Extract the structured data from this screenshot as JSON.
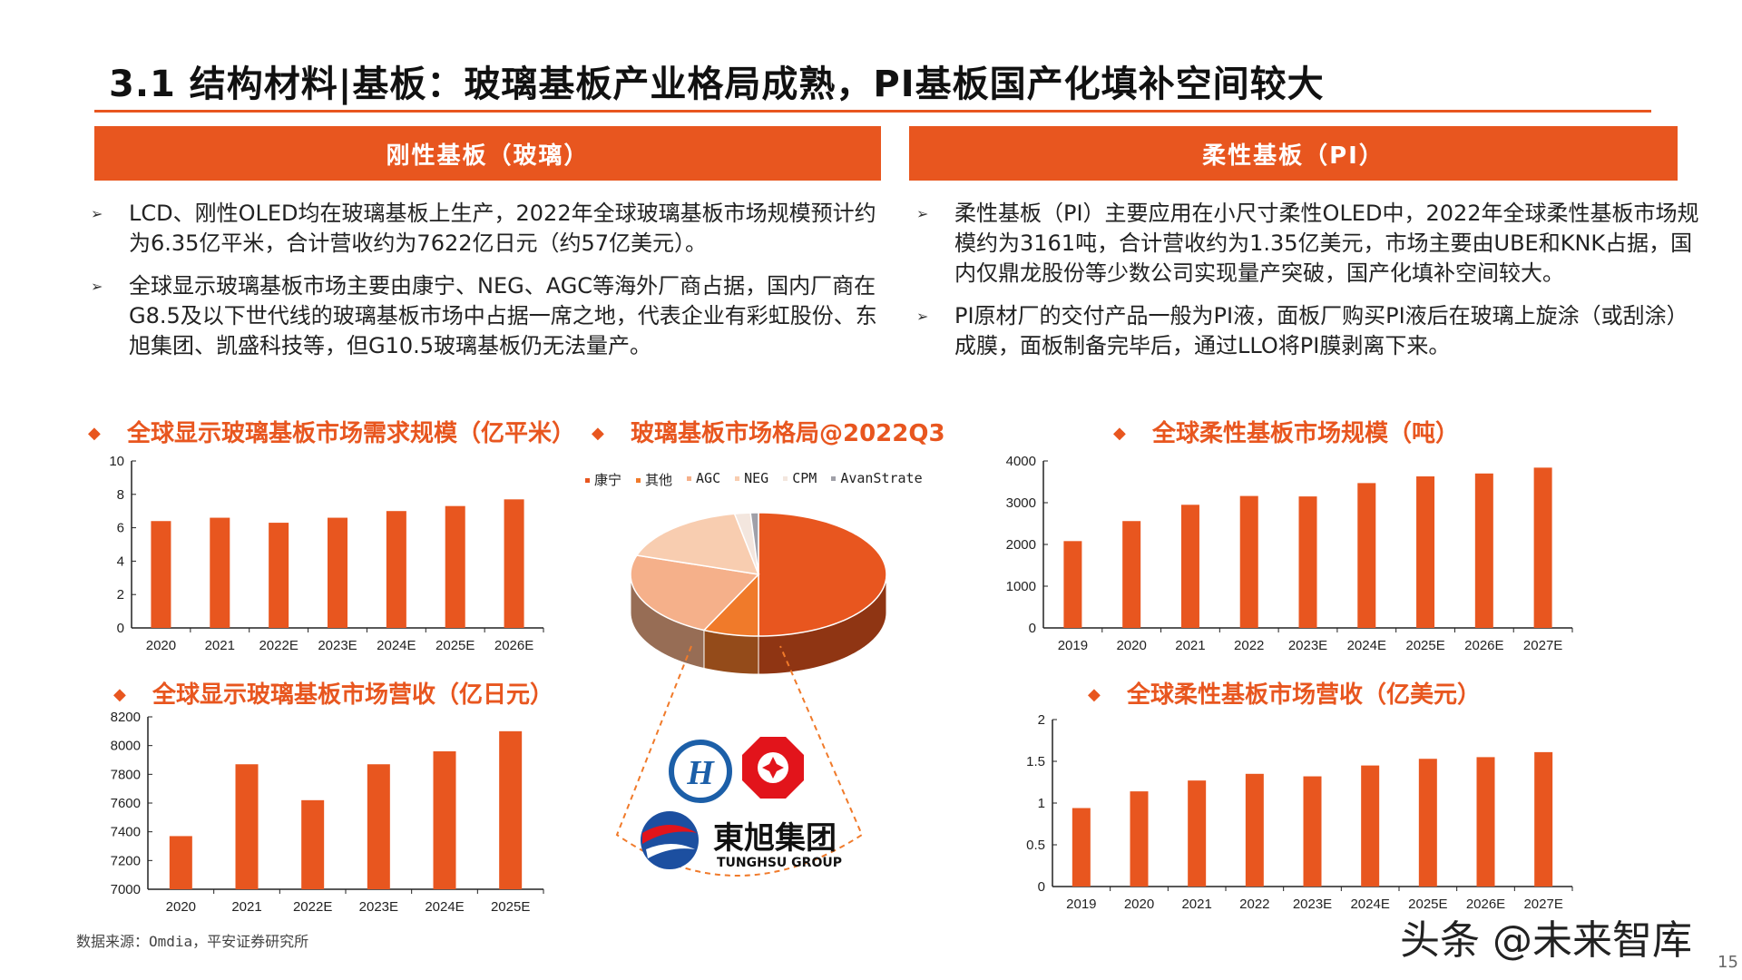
{
  "header": {
    "title": "3.1 结构材料|基板：玻璃基板产业格局成熟，PI基板国产化填补空间较大"
  },
  "left_section": {
    "heading": "刚性基板（玻璃）",
    "bullets": [
      "LCD、刚性OLED均在玻璃基板上生产，2022年全球玻璃基板市场规模预计约为6.35亿平米，合计营收约为7622亿日元（约57亿美元）。",
      "全球显示玻璃基板市场主要由康宁、NEG、AGC等海外厂商占据，国内厂商在G8.5及以下世代线的玻璃基板市场中占据一席之地，代表企业有彩虹股份、东旭集团、凯盛科技等，但G10.5玻璃基板仍无法量产。"
    ]
  },
  "right_section": {
    "heading": "柔性基板（PI）",
    "bullets": [
      "柔性基板（PI）主要应用在小尺寸柔性OLED中，2022年全球柔性基板市场规模约为3161吨，合计营收约为1.35亿美元，市场主要由UBE和KNK占据，国内仅鼎龙股份等少数公司实现量产突破，国产化填补空间较大。",
      "PI原材厂的交付产品一般为PI液，面板厂购买PI液后在玻璃上旋涂（或刮涂）成膜，面板制备完毕后，通过LLO将PI膜剥离下来。"
    ]
  },
  "bullet_marker": "➢",
  "diamond": "◆",
  "accent_color": "#E8561F",
  "logos": {
    "company_cn": "東旭集团",
    "company_en": "TUNGHSU GROUP"
  },
  "source": "数据来源：Omdia，平安证券研究所",
  "watermark": "头条 @未来智库",
  "page_number": "15",
  "chart_data": [
    {
      "type": "bar",
      "title": "全球显示玻璃基板市场需求规模（亿平米）",
      "categories": [
        "2020",
        "2021",
        "2022E",
        "2023E",
        "2024E",
        "2025E",
        "2026E"
      ],
      "values": [
        6.4,
        6.6,
        6.3,
        6.6,
        7.0,
        7.3,
        7.7
      ],
      "yticks": [
        "0",
        "2",
        "4",
        "6",
        "8",
        "10"
      ],
      "ylim": [
        0,
        10
      ],
      "color": "#E8561F"
    },
    {
      "type": "pie",
      "title": "玻璃基板市场格局@2022Q3",
      "legend_position": "top",
      "three_d": true,
      "slices": [
        {
          "name": "康宁",
          "value": 50,
          "color": "#E8561F"
        },
        {
          "name": "其他",
          "value": 7,
          "color": "#F07A2A"
        },
        {
          "name": "AGC",
          "value": 23,
          "color": "#F5B08A"
        },
        {
          "name": "NEG",
          "value": 17,
          "color": "#F8CDB0"
        },
        {
          "name": "CPM",
          "value": 2,
          "color": "#F3E6DE"
        },
        {
          "name": "AvanStrate",
          "value": 1,
          "color": "#A0A0A8"
        }
      ]
    },
    {
      "type": "bar",
      "title": "全球显示玻璃基板市场营收（亿日元）",
      "categories": [
        "2020",
        "2021",
        "2022E",
        "2023E",
        "2024E",
        "2025E"
      ],
      "values": [
        7370,
        7870,
        7620,
        7870,
        7960,
        8100
      ],
      "yticks": [
        "7000",
        "7200",
        "7400",
        "7600",
        "7800",
        "8000",
        "8200"
      ],
      "ylim": [
        7000,
        8200
      ],
      "color": "#E8561F"
    },
    {
      "type": "bar",
      "title": "全球柔性基板市场规模（吨）",
      "categories": [
        "2019",
        "2020",
        "2021",
        "2022",
        "2023E",
        "2024E",
        "2025E",
        "2026E",
        "2027E"
      ],
      "values": [
        2080,
        2560,
        2950,
        3161,
        3150,
        3470,
        3630,
        3700,
        3840
      ],
      "yticks": [
        "0",
        "1000",
        "2000",
        "3000",
        "4000"
      ],
      "ylim": [
        0,
        4000
      ],
      "color": "#E8561F"
    },
    {
      "type": "bar",
      "title": "全球柔性基板市场营收（亿美元）",
      "categories": [
        "2019",
        "2020",
        "2021",
        "2022",
        "2023E",
        "2024E",
        "2025E",
        "2026E",
        "2027E"
      ],
      "values": [
        0.94,
        1.14,
        1.27,
        1.35,
        1.32,
        1.45,
        1.53,
        1.55,
        1.61
      ],
      "yticks": [
        "0",
        "0.5",
        "1",
        "1.5",
        "2"
      ],
      "ylim": [
        0,
        2
      ],
      "color": "#E8561F"
    }
  ]
}
